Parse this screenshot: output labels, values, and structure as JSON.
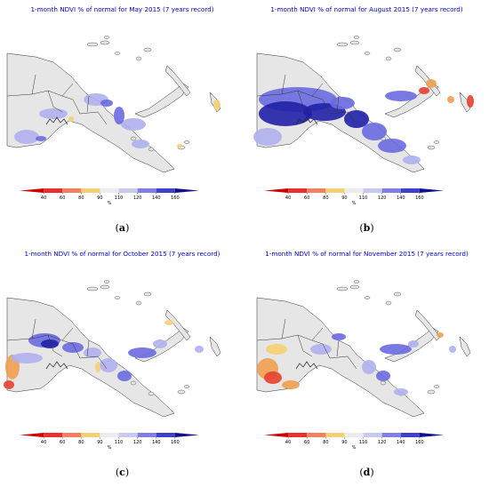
{
  "panels": [
    {
      "title": "1-month NDVI % of normal for May 2015 (7 years record)",
      "label_open": "(",
      "label_letter": "a",
      "label_close": ")"
    },
    {
      "title": "1-month NDVI % of normal for August 2015 (7 years record)",
      "label_open": "(",
      "label_letter": "b",
      "label_close": ")"
    },
    {
      "title": "1-month NDVI % of normal for October 2015 (7 years record)",
      "label_open": "(",
      "label_letter": "c",
      "label_close": ")"
    },
    {
      "title": "1-month NDVI % of normal for November 2015 (7 years record)",
      "label_open": "(",
      "label_letter": "d",
      "label_close": ")"
    }
  ],
  "colorbar": {
    "ticks": [
      "40",
      "60",
      "80",
      "90",
      "110",
      "120",
      "140",
      "160"
    ],
    "unit": "%",
    "colors": [
      "#cc0000",
      "#e83030",
      "#f08060",
      "#f5d070",
      "#ececec",
      "#c8c8f0",
      "#8080e0",
      "#4040c8",
      "#10108a"
    ]
  },
  "map_colors": {
    "land": "#e6e6e6",
    "border": "#333333",
    "low_red": "#e84030",
    "low_orange": "#f0a050",
    "low_yellow": "#f5d070",
    "high_light": "#b0b0ee",
    "high_mid": "#6a6ae0",
    "high_dark": "#2020a8"
  }
}
